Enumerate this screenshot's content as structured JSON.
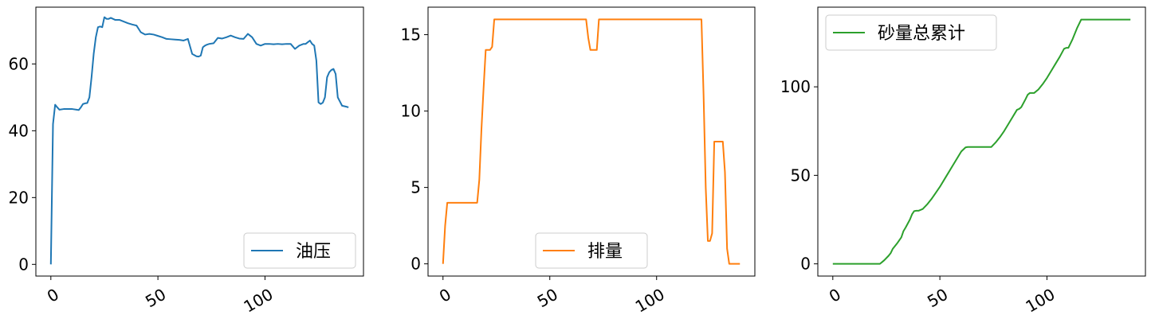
{
  "chart_data": [
    {
      "type": "line",
      "title": "",
      "xlabel": "",
      "ylabel": "",
      "xlim": [
        -7,
        146
      ],
      "ylim": [
        -3.5,
        77
      ],
      "xticks": [
        0,
        50,
        100
      ],
      "xtick_labels": [
        "0",
        "50",
        "100"
      ],
      "yticks": [
        0,
        20,
        40,
        60
      ],
      "ytick_labels": [
        "0",
        "20",
        "40",
        "60"
      ],
      "grid": false,
      "legend_position": "lower-right",
      "series": [
        {
          "name": "油压",
          "color": "#1f77b4",
          "x": [
            0,
            1,
            2,
            3,
            4,
            6,
            8,
            10,
            12,
            13,
            14,
            15,
            16,
            17,
            18,
            19,
            20,
            21,
            22,
            23,
            24,
            25,
            26,
            27,
            28,
            30,
            32,
            34,
            36,
            38,
            40,
            42,
            44,
            46,
            48,
            50,
            52,
            54,
            56,
            58,
            60,
            62,
            64,
            66,
            68,
            69,
            70,
            71,
            72,
            73,
            74,
            76,
            78,
            80,
            82,
            84,
            86,
            88,
            90,
            92,
            93,
            94,
            96,
            98,
            100,
            102,
            104,
            106,
            108,
            110,
            112,
            114,
            116,
            118,
            119,
            120,
            121,
            122,
            123,
            124,
            125,
            126,
            127,
            128,
            129,
            130,
            131,
            132,
            133,
            134,
            136,
            138,
            139
          ],
          "y": [
            0,
            42,
            47.8,
            47,
            46.3,
            46.5,
            46.5,
            46.5,
            46.3,
            46.2,
            47,
            48,
            48.2,
            48.3,
            50,
            56,
            63,
            68,
            71,
            71.2,
            71,
            74,
            73.5,
            73.5,
            73.8,
            73.2,
            73.2,
            72.7,
            72.2,
            71.8,
            71.5,
            69.5,
            68.8,
            69,
            68.8,
            68.4,
            68,
            67.5,
            67.4,
            67.3,
            67.2,
            67,
            67.5,
            63,
            62.3,
            62.2,
            62.5,
            65,
            65.5,
            65.8,
            66,
            66.2,
            67.8,
            67.6,
            68,
            68.5,
            68,
            67.6,
            67.5,
            69,
            68.5,
            68,
            66,
            65.5,
            66,
            66,
            65.9,
            66,
            65.9,
            66,
            66,
            64.5,
            65.5,
            66,
            66,
            66.5,
            67,
            66,
            65.5,
            61,
            48.5,
            48,
            48.4,
            50,
            56,
            57.5,
            58.2,
            58.5,
            57,
            50,
            47.5,
            47.2,
            47
          ]
        }
      ]
    },
    {
      "type": "line",
      "title": "",
      "xlabel": "",
      "ylabel": "",
      "xlim": [
        -7,
        146
      ],
      "ylim": [
        -0.8,
        16.8
      ],
      "xticks": [
        0,
        50,
        100
      ],
      "xtick_labels": [
        "0",
        "50",
        "100"
      ],
      "yticks": [
        0,
        5,
        10,
        15
      ],
      "ytick_labels": [
        "0",
        "5",
        "10",
        "15"
      ],
      "grid": false,
      "legend_position": "lower-center",
      "series": [
        {
          "name": "排量",
          "color": "#ff7f0e",
          "x": [
            0,
            1,
            2,
            16,
            17,
            18,
            19,
            20,
            21,
            22,
            23,
            24,
            25,
            67,
            68,
            69,
            72,
            73,
            74,
            121,
            122,
            123,
            124,
            125,
            126,
            127,
            129,
            130,
            131,
            132,
            133,
            134,
            139
          ],
          "y": [
            0,
            2.5,
            4,
            4,
            5.5,
            8.8,
            11.5,
            14,
            14,
            14,
            14.2,
            16,
            16,
            16,
            14.8,
            14,
            14,
            16,
            16,
            16,
            11,
            5,
            1.5,
            1.5,
            2,
            8,
            8,
            8,
            8,
            6,
            1,
            0,
            0
          ]
        }
      ]
    },
    {
      "type": "line",
      "title": "",
      "xlabel": "",
      "ylabel": "",
      "xlim": [
        -7,
        146
      ],
      "ylim": [
        -6.9,
        145
      ],
      "xticks": [
        0,
        50,
        100
      ],
      "xtick_labels": [
        "0",
        "50",
        "100"
      ],
      "yticks": [
        0,
        50,
        100
      ],
      "ytick_labels": [
        "0",
        "50",
        "100"
      ],
      "grid": false,
      "legend_position": "upper-left",
      "series": [
        {
          "name": "砂量总累计",
          "color": "#2ca02c",
          "x": [
            0,
            22,
            23,
            24,
            26,
            27,
            28,
            30,
            32,
            33,
            34,
            36,
            37,
            38,
            39,
            40,
            42,
            44,
            46,
            48,
            50,
            52,
            54,
            56,
            58,
            60,
            62,
            63,
            64,
            66,
            68,
            70,
            72,
            74,
            76,
            78,
            80,
            82,
            84,
            86,
            87,
            88,
            90,
            91,
            92,
            94,
            96,
            98,
            100,
            102,
            104,
            106,
            108,
            109,
            110,
            112,
            114,
            116,
            117,
            118,
            120,
            139
          ],
          "y": [
            0,
            0,
            1,
            2,
            4.5,
            6,
            8.5,
            11.5,
            15,
            18.5,
            20.5,
            25,
            28,
            29.8,
            30,
            30,
            31,
            33.5,
            36.5,
            40,
            43.5,
            47.5,
            51.5,
            55.5,
            59.5,
            63.5,
            65.8,
            66,
            66,
            66,
            66,
            66,
            66,
            66,
            68.5,
            71.5,
            75,
            79,
            83,
            87,
            87.5,
            88.5,
            93,
            95.5,
            96.5,
            96.5,
            98.5,
            101.5,
            105,
            109,
            113,
            117,
            121.5,
            122,
            122,
            127,
            133,
            138,
            138,
            138,
            138,
            138
          ]
        }
      ]
    }
  ]
}
